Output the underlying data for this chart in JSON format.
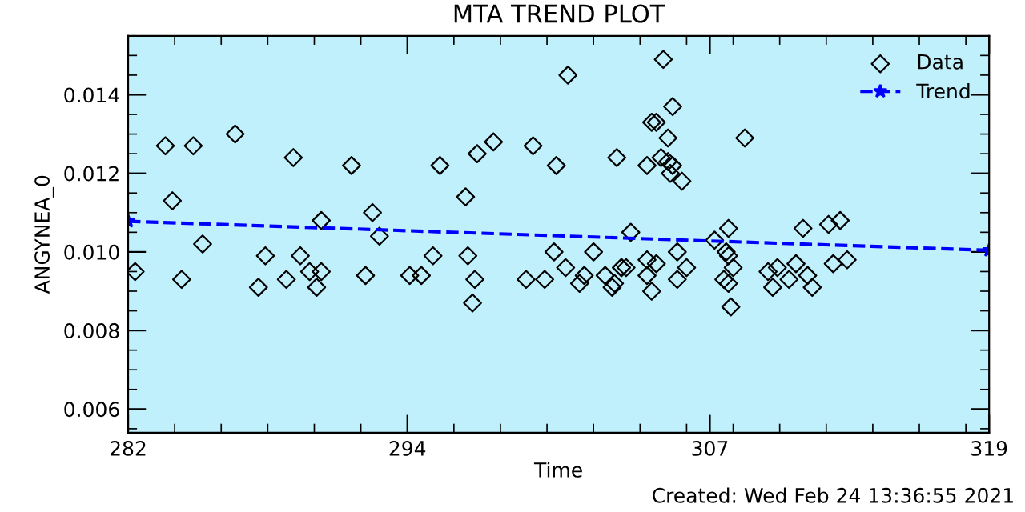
{
  "chart_data": {
    "type": "scatter",
    "title": "MTA TREND PLOT",
    "xlabel": "Time",
    "ylabel": "ANGYNEA_0",
    "xlim": [
      282,
      319
    ],
    "xticks": [
      282,
      294,
      307,
      319
    ],
    "ylim": [
      0.0054,
      0.0155
    ],
    "yticks": [
      0.006,
      0.008,
      {
        "value": 0.01,
        "label": "0.010"
      },
      0.012,
      0.014
    ],
    "grid": false,
    "legend": "top right",
    "annotations": [
      "Created: Wed Feb 24 13:36:55 2021"
    ],
    "series": [
      {
        "name": "Data",
        "color": "#000000",
        "marker": "diamond",
        "x": [
          282.3,
          283.6,
          283.9,
          284.3,
          284.8,
          285.2,
          286.6,
          287.6,
          287.9,
          288.8,
          289.1,
          289.4,
          289.8,
          290.1,
          290.3,
          290.3,
          291.6,
          292.2,
          292.5,
          292.8,
          294.1,
          294.6,
          295.1,
          295.4,
          296.5,
          296.6,
          296.8,
          296.9,
          297.0,
          297.7,
          299.1,
          299.4,
          299.9,
          300.3,
          300.4,
          300.8,
          300.9,
          301.4,
          301.6,
          302.0,
          302.5,
          302.8,
          302.9,
          303.0,
          303.2,
          303.2,
          303.4,
          303.6,
          304.3,
          304.3,
          304.3,
          304.5,
          304.5,
          304.7,
          304.7,
          304.9,
          305.0,
          305.2,
          305.2,
          305.3,
          305.4,
          305.4,
          305.6,
          305.6,
          305.8,
          306.0,
          307.2,
          307.6,
          307.7,
          307.8,
          307.8,
          307.8,
          307.9,
          308.0,
          308.5,
          309.5,
          309.7,
          309.9,
          310.4,
          310.7,
          311.0,
          311.2,
          311.4,
          312.1,
          312.3,
          312.6,
          312.9
        ],
        "values": [
          0.0095,
          0.0127,
          0.0113,
          0.0093,
          0.0127,
          0.0102,
          0.013,
          0.0091,
          0.0099,
          0.0093,
          0.0124,
          0.0099,
          0.0095,
          0.0091,
          0.0108,
          0.0095,
          0.0122,
          0.0094,
          0.011,
          0.0104,
          0.0094,
          0.0094,
          0.0099,
          0.0122,
          0.0114,
          0.0099,
          0.0087,
          0.0093,
          0.0125,
          0.0128,
          0.0093,
          0.0127,
          0.0093,
          0.01,
          0.0122,
          0.0096,
          0.0145,
          0.0092,
          0.0094,
          0.01,
          0.0094,
          0.0091,
          0.0092,
          0.0124,
          0.0096,
          0.0096,
          0.0096,
          0.0105,
          0.0098,
          0.0094,
          0.0122,
          0.009,
          0.0133,
          0.0133,
          0.0097,
          0.0124,
          0.0149,
          0.0129,
          0.0123,
          0.012,
          0.0137,
          0.0122,
          0.0093,
          0.01,
          0.0118,
          0.0096,
          0.0103,
          0.0093,
          0.01,
          0.0099,
          0.0106,
          0.0092,
          0.0086,
          0.0096,
          0.0129,
          0.0095,
          0.0091,
          0.0096,
          0.0093,
          0.0097,
          0.0106,
          0.0094,
          0.0091,
          0.0107,
          0.0097,
          0.0108,
          0.0098
        ]
      },
      {
        "name": "Trend",
        "type": "line",
        "color": "#0000ff",
        "marker": "star",
        "line_style": "dashed",
        "x": [
          282,
          319
        ],
        "values": [
          0.01078,
          0.01004
        ]
      }
    ]
  }
}
